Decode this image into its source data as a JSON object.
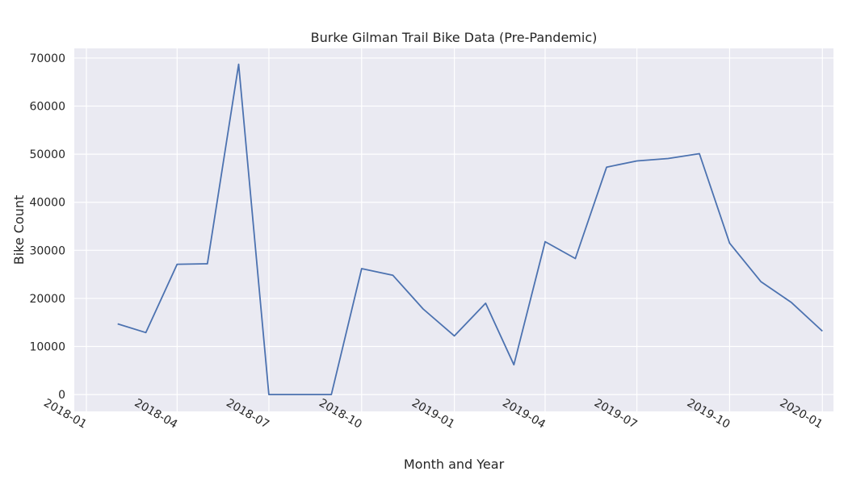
{
  "chart_data": {
    "type": "line",
    "title": "Burke Gilman Trail Bike Data (Pre-Pandemic)",
    "xlabel": "Month and Year",
    "ylabel": "Bike Count",
    "grid": true,
    "colors": {
      "background": "#eaeaf2",
      "line": "#4c72b0",
      "grid": "#ffffff"
    },
    "xlim": [
      "2017-12-20",
      "2020-01-12"
    ],
    "ylim": [
      -3500,
      72000
    ],
    "x_ticks": [
      "2018-01",
      "2018-04",
      "2018-07",
      "2018-10",
      "2019-01",
      "2019-04",
      "2019-07",
      "2019-10",
      "2020-01"
    ],
    "y_ticks": [
      0,
      10000,
      20000,
      30000,
      40000,
      50000,
      60000,
      70000
    ],
    "series": [
      {
        "x": [
          "2018-02",
          "2018-03",
          "2018-04",
          "2018-05",
          "2018-06",
          "2018-07",
          "2018-08",
          "2018-09",
          "2018-10",
          "2018-11",
          "2018-12",
          "2019-01",
          "2019-02",
          "2019-03",
          "2019-04",
          "2019-05",
          "2019-06",
          "2019-07",
          "2019-08",
          "2019-09",
          "2019-10",
          "2019-11",
          "2019-12",
          "2020-01"
        ],
        "values": [
          14700,
          12900,
          27100,
          27200,
          68700,
          0,
          0,
          0,
          26200,
          24800,
          17800,
          12200,
          19000,
          6200,
          31800,
          28300,
          47300,
          48600,
          49100,
          50100,
          31500,
          23500,
          19200,
          13200
        ]
      }
    ]
  }
}
